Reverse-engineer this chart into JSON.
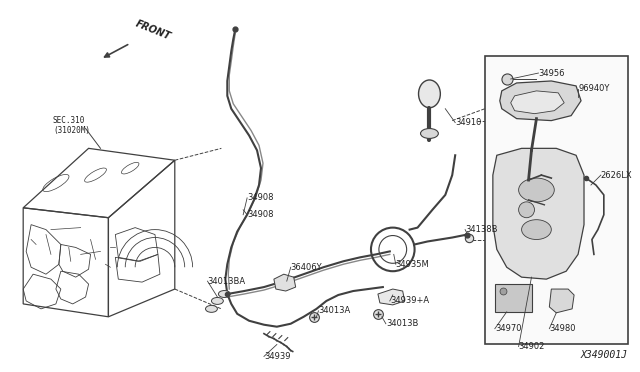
{
  "bg_color": "#ffffff",
  "line_color": "#404040",
  "text_color": "#222222",
  "fig_width": 6.4,
  "fig_height": 3.72,
  "diagram_id": "X349001J",
  "front_label": "FRONT",
  "sec_label": "SEC.310\n(31020M)"
}
